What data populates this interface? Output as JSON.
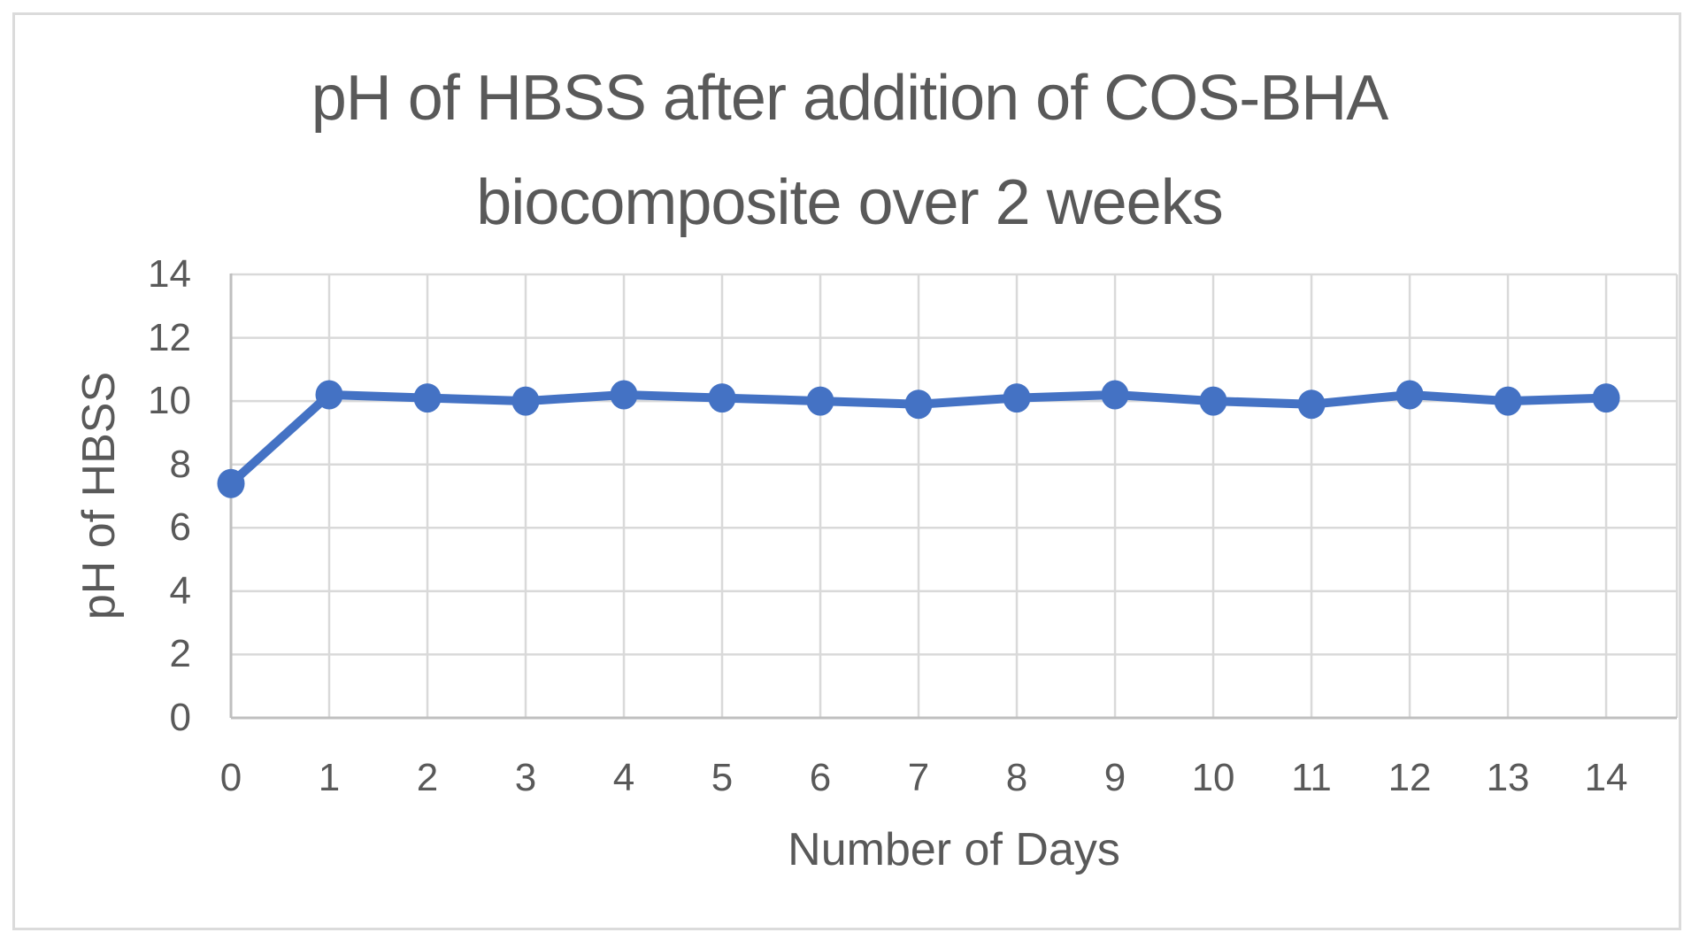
{
  "chart_data": {
    "type": "line",
    "title": "pH of HBSS after addition of COS-BHA biocomposite over 2 weeks",
    "title_lines": [
      "pH of HBSS after addition of COS-BHA",
      "biocomposite over 2 weeks"
    ],
    "xlabel": "Number of Days",
    "ylabel": "pH of HBSS",
    "x": [
      0,
      1,
      2,
      3,
      4,
      5,
      6,
      7,
      8,
      9,
      10,
      11,
      12,
      13,
      14
    ],
    "series": [
      {
        "name": "pH of HBSS",
        "values": [
          7.4,
          10.2,
          10.1,
          10.0,
          10.2,
          10.1,
          10.0,
          9.9,
          10.1,
          10.2,
          10.0,
          9.9,
          10.2,
          10.0,
          10.1
        ]
      }
    ],
    "xlim": [
      0,
      14.72
    ],
    "ylim": [
      0,
      14
    ],
    "yticks": [
      0,
      2,
      4,
      6,
      8,
      10,
      12,
      14
    ],
    "xticks": [
      0,
      1,
      2,
      3,
      4,
      5,
      6,
      7,
      8,
      9,
      10,
      11,
      12,
      13,
      14
    ],
    "grid": true,
    "legend": false,
    "marker": "circle",
    "colors": {
      "line": "#4472C4",
      "gridline": "#d9d9d9",
      "axis": "#bfbfbf",
      "text": "#595959",
      "frame_border": "#dbdbdb",
      "background": "#ffffff"
    }
  }
}
